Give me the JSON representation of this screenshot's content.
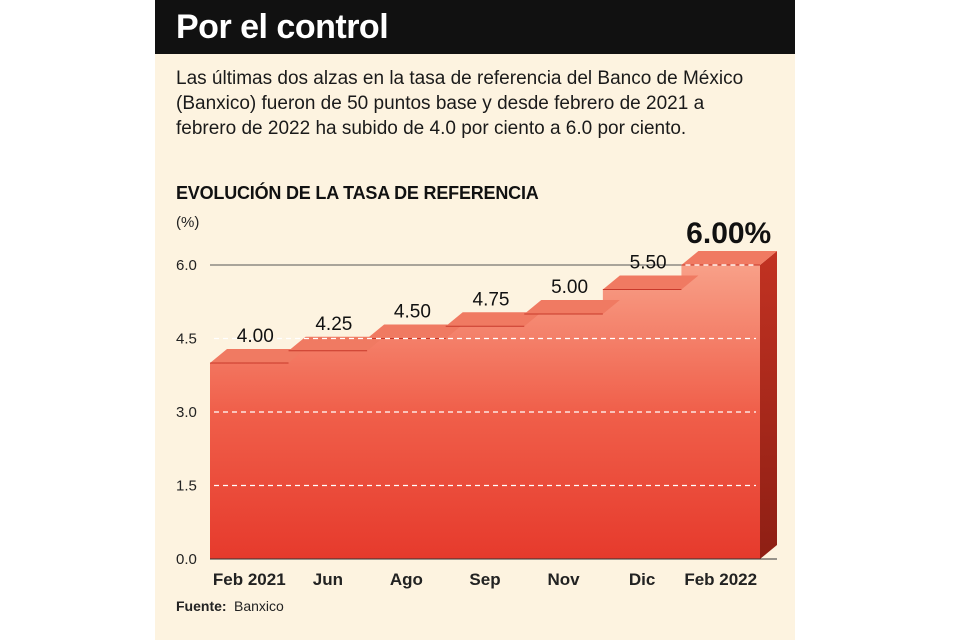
{
  "header": {
    "title": "Por el control"
  },
  "description": "Las últimas dos alzas en la tasa de referencia del Banco de México (Banxico) fueron de 50 puntos base y desde febrero de 2021 a febrero de 2022 ha subido de 4.0 por ciento a 6.0 por ciento.",
  "footer": {
    "source_label": "Fuente:",
    "source_value": "Banxico"
  },
  "colors": {
    "bar_front": "#ef4a3a",
    "bar_top": "#f07a62",
    "bar_side": "#9e2418",
    "background": "#fdf3e0",
    "header": "#111111"
  },
  "chart_data": {
    "type": "area",
    "title": "EVOLUCIÓN DE LA TASA DE REFERENCIA",
    "ylabel": "(%)",
    "xlabel": "",
    "categories": [
      "Feb 2021",
      "Jun",
      "Ago",
      "Sep",
      "Nov",
      "Dic",
      "Feb 2022"
    ],
    "values": [
      4.0,
      4.25,
      4.5,
      4.75,
      5.0,
      5.5,
      6.0
    ],
    "value_labels": [
      "4.00",
      "4.25",
      "4.50",
      "4.75",
      "5.00",
      "5.50",
      "6.00%"
    ],
    "yticks": [
      "0.0",
      "1.5",
      "3.0",
      "4.5",
      "6.0"
    ],
    "ylim": [
      0,
      6
    ],
    "grid": true
  }
}
